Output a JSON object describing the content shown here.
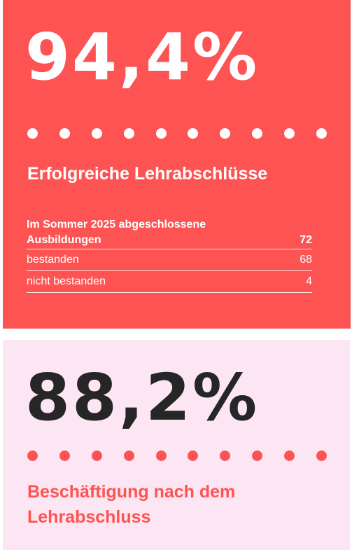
{
  "card1": {
    "value": "94,4%",
    "dot_count": 10,
    "heading": "Erfolgreiche Lehrabschlüsse",
    "table": {
      "header": {
        "label": "Im Sommer 2025 abgeschlossene Ausbildungen",
        "value": "72"
      },
      "rows": [
        {
          "label": "bestanden",
          "value": "68"
        },
        {
          "label": "nicht bestanden",
          "value": "4"
        }
      ]
    },
    "colors": {
      "background": "#fe5353",
      "text": "#ffffff"
    }
  },
  "card2": {
    "value": "88,2%",
    "dot_count": 10,
    "heading": "Beschäftigung nach dem Lehrabschluss",
    "colors": {
      "background": "#fde6f3",
      "value_text": "#262626",
      "accent": "#fe5353"
    }
  }
}
